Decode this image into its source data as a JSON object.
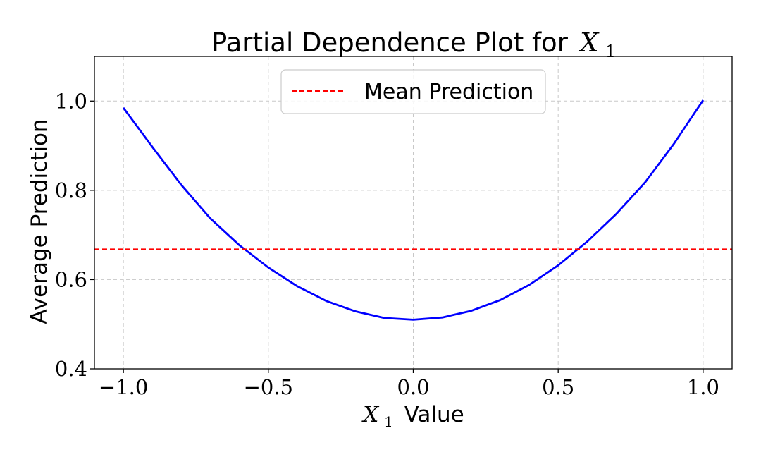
{
  "chart_data": {
    "type": "line",
    "title_text": "Partial Dependence Plot for",
    "title_var": "X",
    "title_sub": "1",
    "xlabel_var": "X",
    "xlabel_sub": "1",
    "xlabel_text": "Value",
    "ylabel": "Average Prediction",
    "xlim": [
      -1.1,
      1.1
    ],
    "ylim": [
      0.4,
      1.1
    ],
    "xticks": [
      -1.0,
      -0.5,
      0.0,
      0.5,
      1.0
    ],
    "xtick_labels": [
      "−1.0",
      "−0.5",
      "0.0",
      "0.5",
      "1.0"
    ],
    "yticks": [
      0.4,
      0.6,
      0.8,
      1.0
    ],
    "ytick_labels": [
      "0.4",
      "0.6",
      "0.8",
      "1.0"
    ],
    "grid": true,
    "legend_position": "upper center",
    "series": [
      {
        "name": "",
        "color": "#0000ff",
        "style": "solid",
        "x": [
          -1.0,
          -0.9,
          -0.8,
          -0.7,
          -0.6,
          -0.5,
          -0.4,
          -0.3,
          -0.2,
          -0.1,
          0.0,
          0.1,
          0.2,
          0.3,
          0.4,
          0.5,
          0.6,
          0.7,
          0.8,
          0.9,
          1.0
        ],
        "y": [
          0.985,
          0.897,
          0.812,
          0.737,
          0.677,
          0.627,
          0.585,
          0.552,
          0.529,
          0.514,
          0.51,
          0.515,
          0.53,
          0.554,
          0.588,
          0.632,
          0.685,
          0.747,
          0.818,
          0.905,
          1.002
        ]
      },
      {
        "name": "Mean Prediction",
        "color": "#ff0000",
        "style": "dashed",
        "y_const": 0.668
      }
    ]
  }
}
